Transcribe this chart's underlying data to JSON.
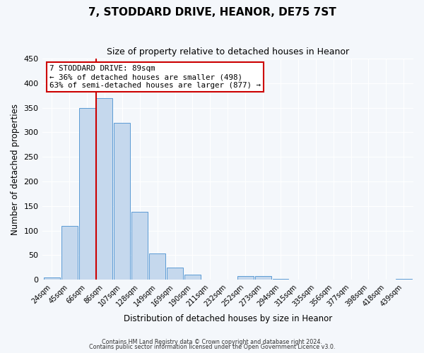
{
  "title": "7, STODDARD DRIVE, HEANOR, DE75 7ST",
  "subtitle": "Size of property relative to detached houses in Heanor",
  "xlabel": "Distribution of detached houses by size in Heanor",
  "ylabel": "Number of detached properties",
  "categories": [
    "24sqm",
    "45sqm",
    "66sqm",
    "86sqm",
    "107sqm",
    "128sqm",
    "149sqm",
    "169sqm",
    "190sqm",
    "211sqm",
    "232sqm",
    "252sqm",
    "273sqm",
    "294sqm",
    "315sqm",
    "335sqm",
    "356sqm",
    "377sqm",
    "398sqm",
    "418sqm",
    "439sqm"
  ],
  "values": [
    5,
    110,
    350,
    370,
    320,
    138,
    53,
    25,
    10,
    0,
    0,
    7,
    7,
    2,
    0,
    0,
    0,
    1,
    0,
    0,
    2
  ],
  "bar_color": "#c5d8ed",
  "bar_edge_color": "#5b9bd5",
  "ylim": [
    0,
    450
  ],
  "yticks": [
    0,
    50,
    100,
    150,
    200,
    250,
    300,
    350,
    400,
    450
  ],
  "property_line_color": "#cc0000",
  "annotation_title": "7 STODDARD DRIVE: 89sqm",
  "annotation_line1": "← 36% of detached houses are smaller (498)",
  "annotation_line2": "63% of semi-detached houses are larger (877) →",
  "annotation_box_color": "#cc0000",
  "footnote1": "Contains HM Land Registry data © Crown copyright and database right 2024.",
  "footnote2": "Contains public sector information licensed under the Open Government Licence v3.0.",
  "bg_color": "#f4f7fb",
  "plot_bg_color": "#f4f7fb",
  "grid_color": "#ffffff"
}
